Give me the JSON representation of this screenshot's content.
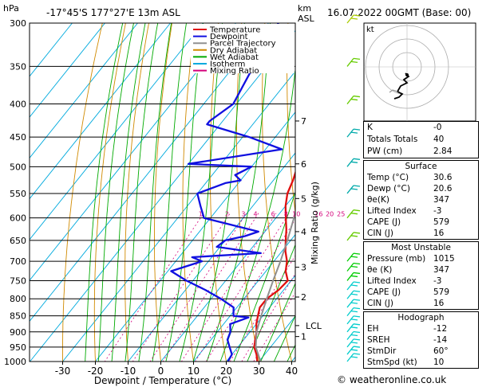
{
  "header": {
    "hpa_label": "hPa",
    "location": "-17°45'S  177°27'E  13m  ASL",
    "km_label": "km",
    "asl_label": "ASL",
    "datetime": "16.07.2022  00GMT  (Base: 00)"
  },
  "legend": [
    {
      "label": "Temperature",
      "color": "#e01010"
    },
    {
      "label": "Dewpoint",
      "color": "#1010e0"
    },
    {
      "label": "Parcel Trajectory",
      "color": "#909090"
    },
    {
      "label": "Dry Adiabat",
      "color": "#d08a00"
    },
    {
      "label": "Wet Adiabat",
      "color": "#00aa00"
    },
    {
      "label": "Isotherm",
      "color": "#00aadd"
    },
    {
      "label": "Mixing Ratio",
      "color": "#d4007a"
    }
  ],
  "chart_data": {
    "type": "line",
    "xlabel": "Dewpoint / Temperature (°C)",
    "ylabel": "Mixing Ratio (g/kg)",
    "x_ticks": [
      "-30",
      "-20",
      "-10",
      "0",
      "10",
      "20",
      "30",
      "40"
    ],
    "pressure_levels": [
      "300",
      "350",
      "400",
      "450",
      "500",
      "550",
      "600",
      "650",
      "700",
      "750",
      "800",
      "850",
      "900",
      "950",
      "1000"
    ],
    "km_ticks": [
      {
        "label": "1",
        "p": 915
      },
      {
        "label": "2",
        "p": 795
      },
      {
        "label": "3",
        "p": 715
      },
      {
        "label": "4",
        "p": 630
      },
      {
        "label": "5",
        "p": 560
      },
      {
        "label": "6",
        "p": 495
      },
      {
        "label": "7",
        "p": 425
      }
    ],
    "lcl": {
      "label": "LCL",
      "p": 880
    },
    "mixing_ratio_labels": [
      "1",
      "2",
      "3",
      "4",
      "6",
      "8",
      "10",
      "16",
      "20",
      "25"
    ],
    "series": [
      {
        "name": "Temperature",
        "color": "#e01010",
        "points": [
          [
            1000,
            29.5
          ],
          [
            975,
            27.5
          ],
          [
            950,
            25
          ],
          [
            925,
            23.5
          ],
          [
            900,
            22
          ],
          [
            875,
            20
          ],
          [
            850,
            18.5
          ],
          [
            825,
            17
          ],
          [
            800,
            17
          ],
          [
            775,
            18.5
          ],
          [
            750,
            19
          ],
          [
            725,
            16
          ],
          [
            700,
            14
          ],
          [
            675,
            11
          ],
          [
            650,
            8.5
          ],
          [
            625,
            6
          ],
          [
            600,
            3
          ],
          [
            575,
            0
          ],
          [
            550,
            -2.5
          ],
          [
            525,
            -4
          ],
          [
            500,
            -6
          ],
          [
            475,
            -9
          ],
          [
            450,
            -12
          ],
          [
            425,
            -15
          ],
          [
            400,
            -19
          ],
          [
            375,
            -23
          ],
          [
            350,
            -27
          ],
          [
            325,
            -31
          ],
          [
            300,
            -35
          ]
        ]
      },
      {
        "name": "Dewpoint",
        "color": "#1010e0",
        "points": [
          [
            1000,
            20.5
          ],
          [
            975,
            20
          ],
          [
            950,
            17.5
          ],
          [
            925,
            15
          ],
          [
            900,
            14
          ],
          [
            875,
            12
          ],
          [
            855,
            16
          ],
          [
            850,
            11
          ],
          [
            825,
            9
          ],
          [
            800,
            3
          ],
          [
            775,
            -4
          ],
          [
            750,
            -12
          ],
          [
            725,
            -19
          ],
          [
            700,
            -12
          ],
          [
            690,
            -16
          ],
          [
            680,
            4
          ],
          [
            665,
            -11
          ],
          [
            650,
            -10
          ],
          [
            640,
            -5
          ],
          [
            630,
            -2
          ],
          [
            600,
            -22
          ],
          [
            575,
            -26
          ],
          [
            550,
            -30
          ],
          [
            530,
            -24
          ],
          [
            525,
            -20
          ],
          [
            515,
            -23
          ],
          [
            500,
            -20
          ],
          [
            495,
            -40
          ],
          [
            470,
            -15
          ],
          [
            450,
            -28
          ],
          [
            430,
            -44
          ],
          [
            425,
            -44
          ],
          [
            400,
            -41
          ],
          [
            350,
            -44
          ],
          [
            300,
            -47
          ]
        ]
      },
      {
        "name": "Parcel Trajectory",
        "color": "#909090",
        "points": [
          [
            1000,
            30.5
          ],
          [
            950,
            25.5
          ],
          [
            900,
            22
          ],
          [
            880,
            21
          ],
          [
            850,
            19.5
          ],
          [
            800,
            17
          ],
          [
            750,
            14.5
          ],
          [
            700,
            12
          ],
          [
            650,
            9
          ],
          [
            600,
            5.5
          ],
          [
            550,
            2
          ],
          [
            500,
            -2
          ],
          [
            450,
            -7
          ],
          [
            400,
            -13
          ],
          [
            380,
            -16
          ],
          [
            350,
            -20
          ]
        ]
      }
    ]
  },
  "hodograph": {
    "label": "kt"
  },
  "indices": {
    "rows": [
      {
        "label": "K",
        "value": "-0"
      },
      {
        "label": "Totals Totals",
        "value": "40"
      },
      {
        "label": "PW (cm)",
        "value": "2.84"
      }
    ]
  },
  "surface": {
    "title": "Surface",
    "rows": [
      {
        "label": "Temp (°C)",
        "value": "30.6"
      },
      {
        "label": "Dewp (°C)",
        "value": "20.6"
      },
      {
        "label": "θe(K)",
        "value": "347"
      },
      {
        "label": "Lifted Index",
        "value": "-3"
      },
      {
        "label": "CAPE (J)",
        "value": "579"
      },
      {
        "label": "CIN (J)",
        "value": "16"
      }
    ]
  },
  "most_unstable": {
    "title": "Most Unstable",
    "rows": [
      {
        "label": "Pressure (mb)",
        "value": "1015"
      },
      {
        "label": "θe (K)",
        "value": "347"
      },
      {
        "label": "Lifted Index",
        "value": "-3"
      },
      {
        "label": "CAPE (J)",
        "value": "579"
      },
      {
        "label": "CIN (J)",
        "value": "16"
      }
    ]
  },
  "hodo_stats": {
    "title": "Hodograph",
    "rows": [
      {
        "label": "EH",
        "value": "-12"
      },
      {
        "label": "SREH",
        "value": "-14"
      },
      {
        "label": "StmDir",
        "value": "60°"
      },
      {
        "label": "StmSpd (kt)",
        "value": "10"
      }
    ]
  },
  "footer": {
    "credit": "© weatheronline.co.uk"
  }
}
